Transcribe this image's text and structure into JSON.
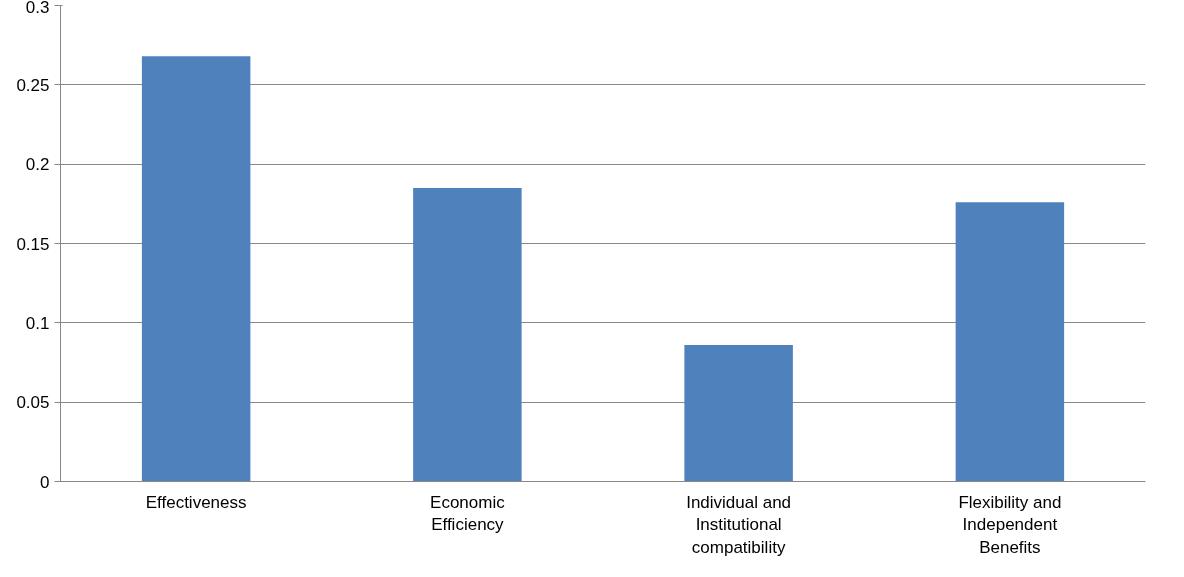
{
  "chart_data": {
    "type": "bar",
    "categories": [
      "Effectiveness",
      "Economic Efficiency",
      "Individual and Institutional compatibility",
      "Flexibility and Independent Benefits"
    ],
    "values": [
      0.268,
      0.185,
      0.086,
      0.176
    ],
    "color": "#4f81bd",
    "ylim": [
      0,
      0.3
    ],
    "yticks": [
      0,
      0.05,
      0.1,
      0.15,
      0.2,
      0.25,
      0.3
    ],
    "grid": "y"
  }
}
